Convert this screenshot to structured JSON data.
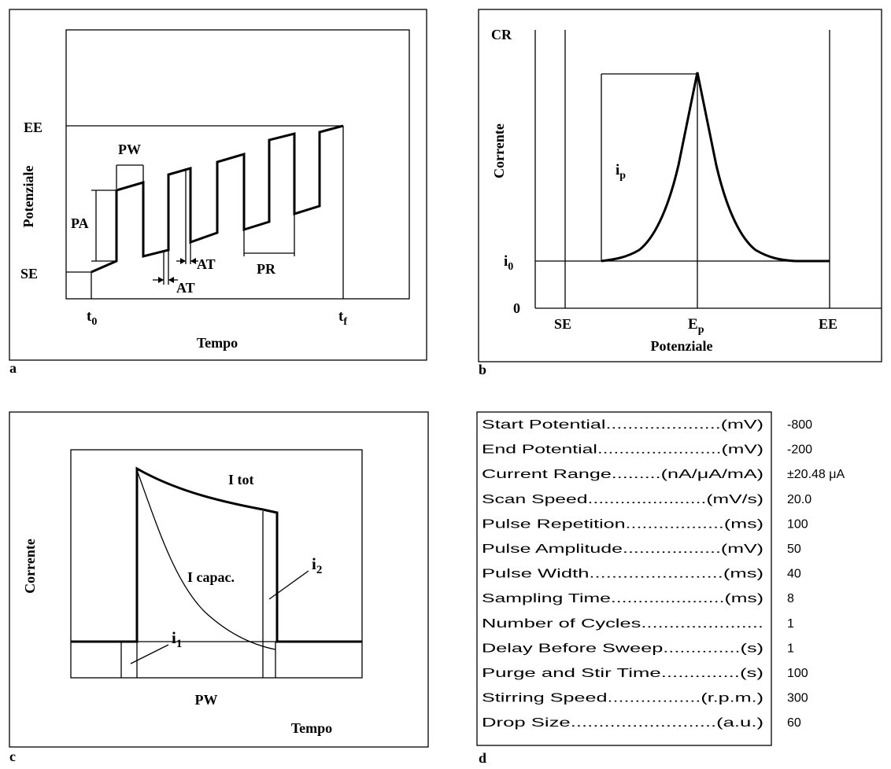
{
  "panel_a": {
    "letter": "a",
    "y_axis_label": "Potenziale",
    "x_axis_label": "Tempo",
    "y_ticks": {
      "end": "EE",
      "start": "SE"
    },
    "x_ticks": {
      "start": "t",
      "start_sub": "0",
      "end": "t",
      "end_sub": "f"
    },
    "annotations": {
      "pw": "PW",
      "pa": "PA",
      "at1": "AT",
      "at2": "AT",
      "pr": "PR"
    }
  },
  "panel_b": {
    "letter": "b",
    "y_axis_label": "Corrente",
    "x_axis_label": "Potenziale",
    "y_ticks": {
      "top": "CR",
      "base": "i",
      "base_sub": "0",
      "zero": "0"
    },
    "x_ticks": {
      "start": "SE",
      "peak": "E",
      "peak_sub": "p",
      "end": "EE"
    },
    "annotations": {
      "peak": "i",
      "peak_sub": "p"
    }
  },
  "panel_c": {
    "letter": "c",
    "y_axis_label": "Corrente",
    "x_axis_label": "Tempo",
    "annotations": {
      "total": "I tot",
      "capacitive": "I capac.",
      "i1": "i",
      "i1_sub": "1",
      "i2": "i",
      "i2_sub": "2",
      "pw": "PW"
    }
  },
  "panel_d": {
    "letter": "d",
    "rows": [
      {
        "label": "Start Potential.....................(mV)",
        "value": "-800"
      },
      {
        "label": "End Potential.......................(mV)",
        "value": "-200"
      },
      {
        "label": "Current Range.........(nA/μA/mA)",
        "value": "±20.48 μA"
      },
      {
        "label": "Scan Speed......................(mV/s)",
        "value": "20.0"
      },
      {
        "label": "Pulse Repetition..................(ms)",
        "value": "100"
      },
      {
        "label": "Pulse Amplitude..................(mV)",
        "value": "50"
      },
      {
        "label": "Pulse Width........................(ms)",
        "value": "40"
      },
      {
        "label": "Sampling Time.....................(ms)",
        "value": "8"
      },
      {
        "label": "Number of Cycles......................",
        "value": "1"
      },
      {
        "label": "Delay Before Sweep..............(s)",
        "value": "1"
      },
      {
        "label": "Purge and Stir Time..............(s)",
        "value": "100"
      },
      {
        "label": "Stirring Speed.................(r.p.m.)",
        "value": "300"
      },
      {
        "label": "Drop Size..........................(a.u.)",
        "value": "60"
      }
    ]
  }
}
